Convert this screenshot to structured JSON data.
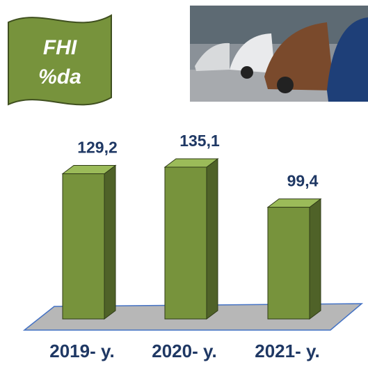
{
  "chart_data": {
    "type": "bar3d",
    "title_lines": [
      "FHI",
      "%da"
    ],
    "categories": [
      "2019- y.",
      "2020- y.",
      "2021- y."
    ],
    "values": [
      129.2,
      135.1,
      99.4
    ],
    "value_labels": [
      "129,2",
      "135,1",
      "99,4"
    ],
    "color": "#77933c"
  }
}
